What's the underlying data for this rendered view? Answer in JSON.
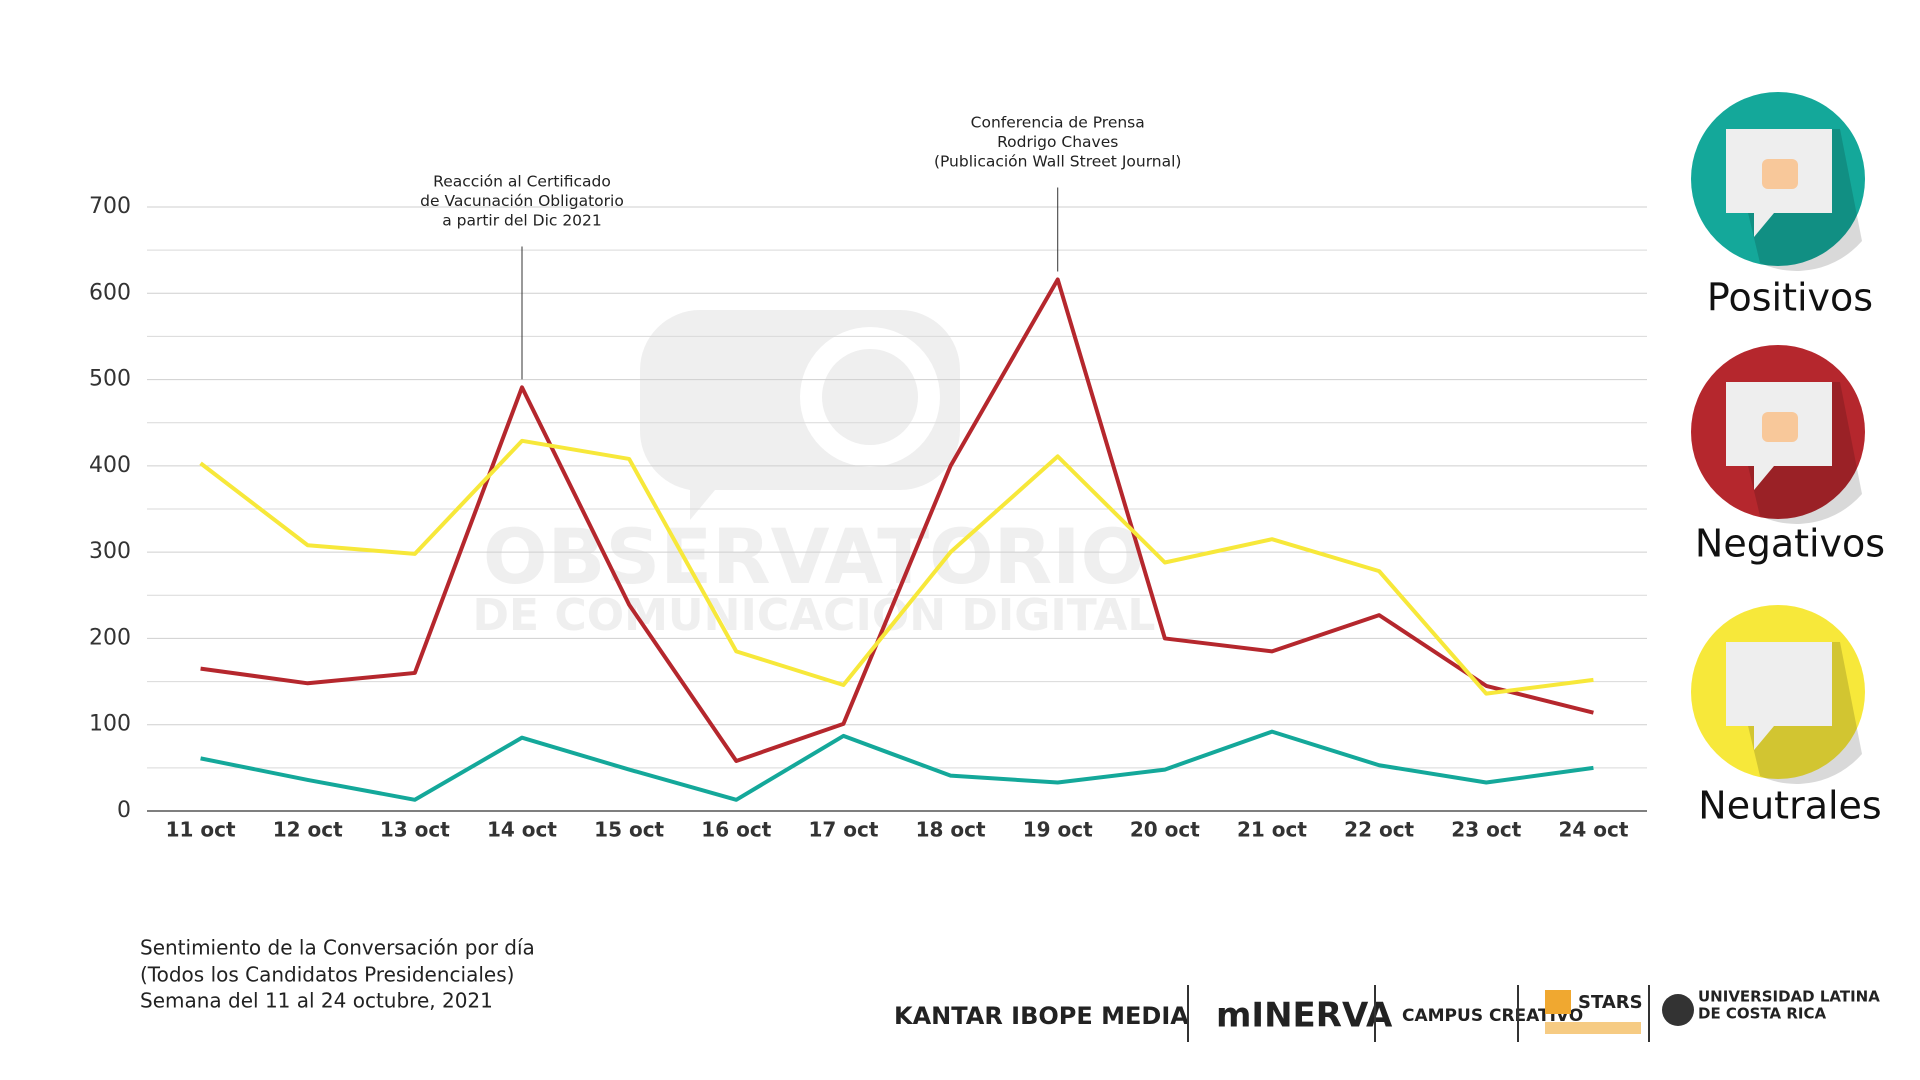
{
  "chart_data": {
    "type": "line",
    "categories": [
      "11 oct",
      "12 oct",
      "13 oct",
      "14 oct",
      "15 oct",
      "16 oct",
      "17 oct",
      "18 oct",
      "19 oct",
      "20 oct",
      "21 oct",
      "22 oct",
      "23 oct",
      "24 oct"
    ],
    "series": [
      {
        "name": "Positivos",
        "color": "#14a89a",
        "values": [
          61,
          36,
          13,
          85,
          48,
          13,
          87,
          41,
          33,
          48,
          92,
          53,
          33,
          50
        ]
      },
      {
        "name": "Negativos",
        "color": "#b5272d",
        "values": [
          165,
          148,
          160,
          491,
          239,
          58,
          101,
          400,
          616,
          200,
          185,
          227,
          145,
          114
        ]
      },
      {
        "name": "Neutrales",
        "color": "#f7e83a",
        "values": [
          403,
          308,
          298,
          429,
          408,
          185,
          146,
          300,
          411,
          288,
          315,
          278,
          136,
          152
        ]
      }
    ],
    "ylim": [
      0,
      700
    ],
    "yticks": [
      0,
      100,
      200,
      300,
      400,
      500,
      600,
      700
    ],
    "minor_yticks": [
      50,
      150,
      250,
      350,
      450,
      550,
      650
    ],
    "grid": true,
    "legend": "right",
    "annotations": [
      {
        "category": "14 oct",
        "lines": [
          "Reacción al Certificado",
          "de Vacunación Obligatorio",
          "a partir del Dic 2021"
        ]
      },
      {
        "category": "19 oct",
        "lines": [
          "Conferencia de Prensa",
          "Rodrigo Chaves",
          "(Publicación Wall Street Journal)"
        ]
      }
    ]
  },
  "watermark": [
    "OBSERVATORIO",
    "DE COMUNICACIÓN DIGITAL"
  ],
  "caption": [
    "Sentimiento de la Conversación por día",
    "(Todos los Candidatos Presidenciales)",
    "Semana del 11 al 24 octubre, 2021"
  ],
  "logos": [
    "KANTAR IBOPE MEDIA",
    "mINERVA",
    "CAMPUS CREATIVO",
    "STARS",
    "UNIVERSIDAD LATINA",
    "DE COSTA RICA"
  ]
}
